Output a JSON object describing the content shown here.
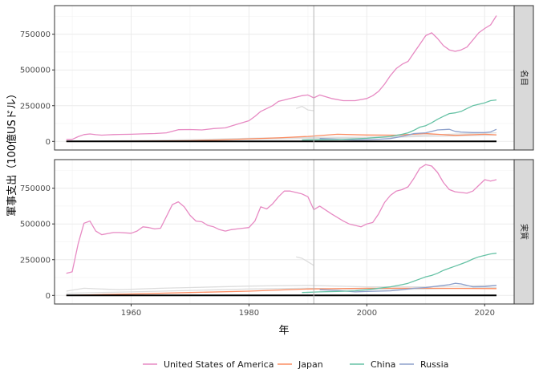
{
  "chart_data": {
    "type": "line",
    "ylabel": "軍事支出（100億USドル）",
    "xlabel": "年",
    "xlim": [
      1947,
      2025
    ],
    "ylim": [
      -60000,
      950000
    ],
    "x_ticks": [
      1960,
      1980,
      2000,
      2020
    ],
    "y_ticks": [
      0,
      250000,
      500000,
      750000
    ],
    "y_tick_labels": [
      "0",
      "250000",
      "500000",
      "750000"
    ],
    "reference_line_x": 1991,
    "grid": true,
    "legend_position": "bottom",
    "colors": {
      "United States of America": "#E78AC3",
      "Japan": "#FC8D62",
      "China": "#66C2A5",
      "Russia": "#8DA0CB",
      "other": "#dddddd",
      "baseline": "#000000"
    },
    "legend": [
      "United States of America",
      "Japan",
      "China",
      "Russia"
    ],
    "panels": [
      {
        "label": "名目",
        "series": [
          {
            "name": "United States of America",
            "x": [
              1949,
              1950,
              1951,
              1952,
              1953,
              1954,
              1955,
              1956,
              1957,
              1958,
              1960,
              1962,
              1964,
              1966,
              1968,
              1970,
              1972,
              1974,
              1976,
              1978,
              1980,
              1981,
              1982,
              1984,
              1985,
              1986,
              1987,
              1988,
              1989,
              1990,
              1991,
              1992,
              1994,
              1996,
              1998,
              2000,
              2001,
              2002,
              2003,
              2004,
              2005,
              2006,
              2007,
              2008,
              2009,
              2010,
              2011,
              2012,
              2013,
              2014,
              2015,
              2016,
              2017,
              2018,
              2019,
              2020,
              2021,
              2022
            ],
            "values": [
              14000,
              14000,
              33000,
              48000,
              52000,
              47000,
              44000,
              46000,
              48000,
              49000,
              50000,
              53000,
              55000,
              60000,
              82000,
              83000,
              80000,
              90000,
              95000,
              120000,
              145000,
              175000,
              210000,
              250000,
              280000,
              290000,
              300000,
              310000,
              320000,
              325000,
              305000,
              325000,
              300000,
              285000,
              285000,
              300000,
              320000,
              350000,
              400000,
              460000,
              510000,
              540000,
              560000,
              620000,
              680000,
              740000,
              760000,
              720000,
              670000,
              640000,
              630000,
              640000,
              660000,
              710000,
              760000,
              790000,
              815000,
              880000
            ]
          },
          {
            "name": "Japan",
            "x": [
              1949,
              1955,
              1960,
              1965,
              1970,
              1975,
              1980,
              1985,
              1990,
              1995,
              2000,
              2005,
              2010,
              2015,
              2020,
              2022
            ],
            "values": [
              0,
              1000,
              2000,
              3000,
              5000,
              10000,
              18000,
              25000,
              35000,
              50000,
              45000,
              44000,
              55000,
              42000,
              50000,
              46000
            ]
          },
          {
            "name": "China",
            "x": [
              1989,
              1992,
              1995,
              1998,
              2000,
              2002,
              2004,
              2006,
              2007,
              2008,
              2009,
              2010,
              2011,
              2012,
              2013,
              2014,
              2015,
              2016,
              2017,
              2018,
              2019,
              2020,
              2021,
              2022
            ],
            "values": [
              10000,
              12000,
              13000,
              18000,
              22000,
              28000,
              35000,
              50000,
              60000,
              78000,
              100000,
              110000,
              130000,
              155000,
              175000,
              195000,
              200000,
              210000,
              230000,
              250000,
              260000,
              270000,
              285000,
              290000
            ]
          },
          {
            "name": "Russia",
            "x": [
              1992,
              1995,
              1998,
              2000,
              2002,
              2004,
              2006,
              2008,
              2010,
              2012,
              2014,
              2015,
              2016,
              2018,
              2020,
              2021,
              2022
            ],
            "values": [
              20000,
              15000,
              10000,
              12000,
              15000,
              20000,
              35000,
              55000,
              60000,
              80000,
              85000,
              70000,
              65000,
              62000,
              62000,
              66000,
              85000
            ]
          },
          {
            "name": "other",
            "x": [
              1988,
              1989,
              1990,
              1991
            ],
            "values": [
              230000,
              245000,
              220000,
              215000
            ]
          },
          {
            "name": "other",
            "x": [
              1949,
              1960,
              1970,
              1980,
              1990,
              2000,
              2010,
              2022
            ],
            "values": [
              2000,
              5000,
              12000,
              22000,
              28000,
              30000,
              45000,
              60000
            ]
          },
          {
            "name": "other",
            "x": [
              1949,
              1960,
              1970,
              1980,
              1990,
              2000,
              2010,
              2022
            ],
            "values": [
              1000,
              3000,
              8000,
              15000,
              20000,
              25000,
              35000,
              45000
            ]
          },
          {
            "name": "baseline",
            "x": [
              1949,
              2022
            ],
            "values": [
              0,
              0
            ]
          }
        ]
      },
      {
        "label": "実質",
        "series": [
          {
            "name": "United States of America",
            "x": [
              1949,
              1950,
              1951,
              1952,
              1953,
              1954,
              1955,
              1957,
              1958,
              1960,
              1961,
              1962,
              1963,
              1964,
              1965,
              1967,
              1968,
              1969,
              1970,
              1971,
              1972,
              1973,
              1974,
              1975,
              1976,
              1977,
              1978,
              1979,
              1980,
              1981,
              1982,
              1983,
              1984,
              1985,
              1986,
              1987,
              1988,
              1989,
              1990,
              1991,
              1992,
              1994,
              1996,
              1997,
              1998,
              1999,
              2000,
              2001,
              2002,
              2003,
              2004,
              2005,
              2006,
              2007,
              2008,
              2009,
              2010,
              2011,
              2012,
              2013,
              2014,
              2015,
              2016,
              2017,
              2018,
              2019,
              2020,
              2021,
              2022
            ],
            "values": [
              155000,
              165000,
              360000,
              505000,
              520000,
              450000,
              425000,
              440000,
              440000,
              435000,
              450000,
              480000,
              475000,
              465000,
              470000,
              635000,
              655000,
              620000,
              560000,
              520000,
              515000,
              490000,
              480000,
              460000,
              450000,
              460000,
              465000,
              470000,
              475000,
              520000,
              620000,
              605000,
              640000,
              690000,
              730000,
              730000,
              720000,
              710000,
              690000,
              600000,
              625000,
              570000,
              520000,
              500000,
              490000,
              480000,
              500000,
              510000,
              570000,
              650000,
              700000,
              730000,
              740000,
              760000,
              820000,
              890000,
              915000,
              905000,
              860000,
              790000,
              740000,
              725000,
              720000,
              715000,
              730000,
              770000,
              810000,
              800000,
              810000
            ]
          },
          {
            "name": "Japan",
            "x": [
              1949,
              1960,
              1970,
              1980,
              1990,
              2000,
              2010,
              2022
            ],
            "values": [
              0,
              10000,
              20000,
              30000,
              45000,
              50000,
              50000,
              48000
            ]
          },
          {
            "name": "China",
            "x": [
              1989,
              1992,
              1995,
              1998,
              2000,
              2002,
              2004,
              2006,
              2007,
              2008,
              2009,
              2010,
              2011,
              2012,
              2013,
              2014,
              2015,
              2016,
              2017,
              2018,
              2019,
              2020,
              2021,
              2022
            ],
            "values": [
              20000,
              25000,
              28000,
              32000,
              40000,
              50000,
              60000,
              75000,
              85000,
              100000,
              115000,
              130000,
              140000,
              155000,
              175000,
              190000,
              205000,
              220000,
              235000,
              255000,
              270000,
              280000,
              290000,
              295000
            ]
          },
          {
            "name": "Russia",
            "x": [
              1992,
              1995,
              1998,
              2000,
              2002,
              2004,
              2006,
              2008,
              2010,
              2012,
              2014,
              2015,
              2016,
              2018,
              2020,
              2022
            ],
            "values": [
              40000,
              35000,
              25000,
              28000,
              30000,
              32000,
              40000,
              50000,
              55000,
              65000,
              75000,
              85000,
              80000,
              60000,
              62000,
              70000
            ]
          },
          {
            "name": "other",
            "x": [
              1988,
              1989,
              1990,
              1991
            ],
            "values": [
              270000,
              260000,
              235000,
              210000
            ]
          },
          {
            "name": "other",
            "x": [
              1949,
              1952,
              1958,
              1965,
              1970,
              1980,
              1990,
              2000,
              2010,
              2022
            ],
            "values": [
              30000,
              50000,
              40000,
              50000,
              55000,
              65000,
              70000,
              60000,
              60000,
              70000
            ]
          },
          {
            "name": "other",
            "x": [
              1949,
              1960,
              1970,
              1980,
              1990,
              2000,
              2010,
              2022
            ],
            "values": [
              15000,
              25000,
              35000,
              45000,
              50000,
              40000,
              45000,
              55000
            ]
          },
          {
            "name": "baseline",
            "x": [
              1949,
              2022
            ],
            "values": [
              0,
              0
            ]
          }
        ]
      }
    ]
  }
}
